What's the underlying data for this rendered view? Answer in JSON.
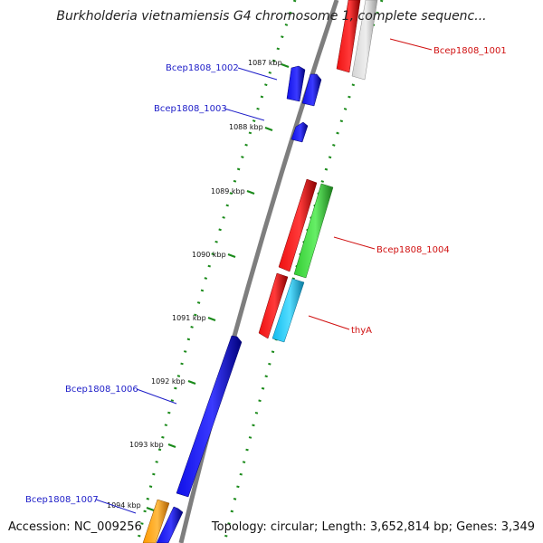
{
  "header": {
    "title": "Burkholderia vietnamiensis G4 chromosome 1, complete sequenc..."
  },
  "footer": {
    "accession": "Accession: NC_009256",
    "summary": "Topology: circular; Length: 3,652,814 bp; Genes: 3,349"
  },
  "colors": {
    "backbone": "#888888",
    "gc_ticks": "#1a8a1a",
    "gene_blue": "#1010e8",
    "gene_red": "#ee1111",
    "gene_green": "#33cc33",
    "gene_cyan": "#11bbee",
    "gene_grey": "#c8c8c8",
    "gene_orange": "#ff9900"
  },
  "scale": {
    "ticks": [
      "1087 kbp",
      "1088 kbp",
      "1089 kbp",
      "1090 kbp",
      "1091 kbp",
      "1092 kbp",
      "1093 kbp",
      "1094 kbp"
    ]
  },
  "genes": [
    {
      "label": "Bcep1808_1001",
      "color": "red"
    },
    {
      "label": "Bcep1808_1002",
      "color": "blue"
    },
    {
      "label": "Bcep1808_1003",
      "color": "blue"
    },
    {
      "label": "Bcep1808_1004",
      "color": "red"
    },
    {
      "label": "thyA",
      "color": "red"
    },
    {
      "label": "Bcep1808_1006",
      "color": "blue"
    },
    {
      "label": "Bcep1808_1007",
      "color": "blue"
    }
  ]
}
